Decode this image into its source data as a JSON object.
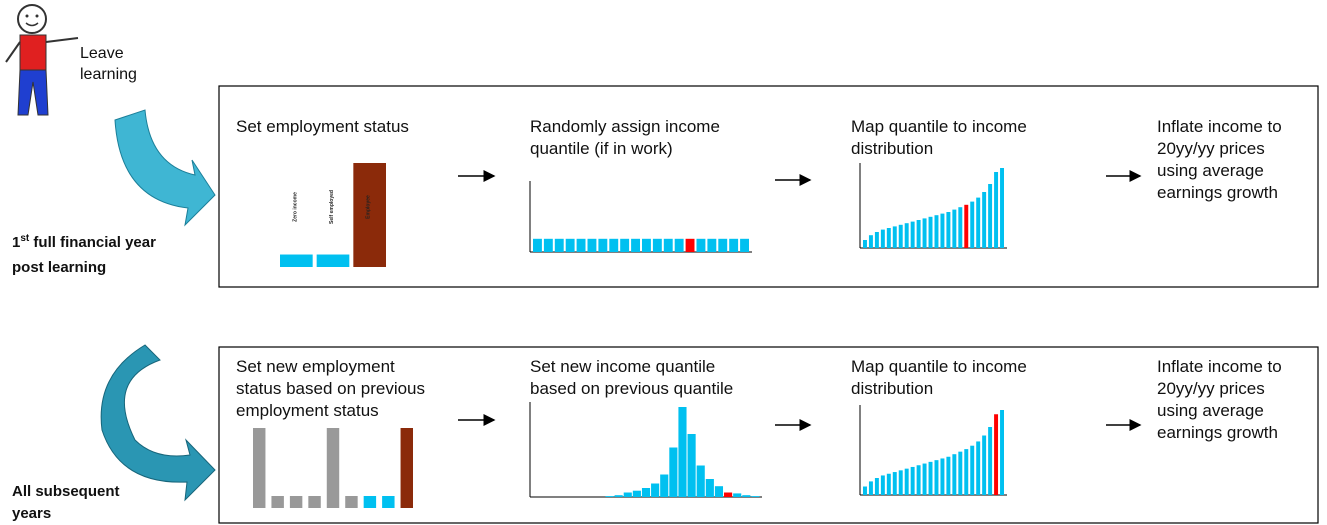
{
  "figure_text": [
    "Leave",
    "learning"
  ],
  "first_year": {
    "ordinal": "1",
    "suffix": "st",
    "rest": " full financial year",
    "line2": "post learning"
  },
  "subsequent": [
    "All subsequent",
    "years"
  ],
  "top_row": {
    "steps": [
      [
        "Set employment status"
      ],
      [
        "Randomly assign income",
        "quantile (if in work)"
      ],
      [
        "Map quantile to income",
        "distribution"
      ],
      [
        "Inflate income to",
        "20yy/yy prices",
        "using average",
        "earnings growth"
      ]
    ],
    "charts": [
      {
        "values": [
          12,
          12,
          100
        ],
        "colors": [
          "#00c0f0",
          "#00c0f0",
          "#8b2a0a"
        ],
        "ylim": [
          0,
          100
        ],
        "labels": [
          "Zero income",
          "Self employed",
          "Employee"
        ]
      },
      {
        "values": [
          4,
          4,
          4,
          4,
          4,
          4,
          4,
          4,
          4,
          4,
          4,
          4,
          4,
          4,
          4,
          4,
          4,
          4,
          4,
          4
        ],
        "colors": [
          "#00c0f0",
          "#00c0f0",
          "#00c0f0",
          "#00c0f0",
          "#00c0f0",
          "#00c0f0",
          "#00c0f0",
          "#00c0f0",
          "#00c0f0",
          "#00c0f0",
          "#00c0f0",
          "#00c0f0",
          "#00c0f0",
          "#00c0f0",
          "#ff0000",
          "#00c0f0",
          "#00c0f0",
          "#00c0f0",
          "#00c0f0",
          "#00c0f0"
        ],
        "ylim": [
          0,
          20
        ]
      },
      {
        "values": [
          10,
          16,
          20,
          23,
          25,
          27,
          29,
          31,
          33,
          35,
          37,
          39,
          41,
          43,
          45,
          48,
          51,
          54,
          58,
          63,
          70,
          80,
          95,
          100
        ],
        "colors": [
          "#00c0f0",
          "#00c0f0",
          "#00c0f0",
          "#00c0f0",
          "#00c0f0",
          "#00c0f0",
          "#00c0f0",
          "#00c0f0",
          "#00c0f0",
          "#00c0f0",
          "#00c0f0",
          "#00c0f0",
          "#00c0f0",
          "#00c0f0",
          "#00c0f0",
          "#00c0f0",
          "#00c0f0",
          "#ff0000",
          "#00c0f0",
          "#00c0f0",
          "#00c0f0",
          "#00c0f0",
          "#00c0f0",
          "#00c0f0"
        ],
        "ylim": [
          0,
          100
        ]
      }
    ]
  },
  "bottom_row": {
    "steps": [
      [
        "Set new employment",
        "status based on previous",
        "employment status"
      ],
      [
        "Set new income quantile",
        "based on previous quantile"
      ],
      [
        "Map quantile to income",
        "distribution"
      ],
      [
        "Inflate income to",
        "20yy/yy prices",
        "using average",
        "earnings growth"
      ]
    ],
    "charts": [
      {
        "values": [
          100,
          15,
          15,
          15,
          100,
          15,
          15,
          15,
          100
        ],
        "colors": [
          "#999999",
          "#999999",
          "#999999",
          "#999999",
          "#999999",
          "#999999",
          "#00c0f0",
          "#00c0f0",
          "#8b2a0a"
        ],
        "ylim": [
          0,
          100
        ]
      },
      {
        "values": [
          0,
          0,
          0,
          0,
          0,
          0,
          0,
          0,
          1,
          2,
          5,
          7,
          10,
          15,
          25,
          55,
          100,
          70,
          35,
          20,
          12,
          5,
          4,
          2,
          1
        ],
        "colors": [
          "#00c0f0",
          "#00c0f0",
          "#00c0f0",
          "#00c0f0",
          "#00c0f0",
          "#00c0f0",
          "#00c0f0",
          "#00c0f0",
          "#00c0f0",
          "#00c0f0",
          "#00c0f0",
          "#00c0f0",
          "#00c0f0",
          "#00c0f0",
          "#00c0f0",
          "#00c0f0",
          "#00c0f0",
          "#00c0f0",
          "#00c0f0",
          "#00c0f0",
          "#00c0f0",
          "#ff0000",
          "#00c0f0",
          "#00c0f0",
          "#00c0f0"
        ],
        "ylim": [
          0,
          100
        ]
      },
      {
        "values": [
          10,
          16,
          20,
          23,
          25,
          27,
          29,
          31,
          33,
          35,
          37,
          39,
          41,
          43,
          45,
          48,
          51,
          54,
          58,
          63,
          70,
          80,
          95,
          100
        ],
        "colors": [
          "#00c0f0",
          "#00c0f0",
          "#00c0f0",
          "#00c0f0",
          "#00c0f0",
          "#00c0f0",
          "#00c0f0",
          "#00c0f0",
          "#00c0f0",
          "#00c0f0",
          "#00c0f0",
          "#00c0f0",
          "#00c0f0",
          "#00c0f0",
          "#00c0f0",
          "#00c0f0",
          "#00c0f0",
          "#00c0f0",
          "#00c0f0",
          "#00c0f0",
          "#00c0f0",
          "#00c0f0",
          "#ff0000",
          "#00c0f0"
        ],
        "ylim": [
          0,
          100
        ]
      }
    ]
  }
}
